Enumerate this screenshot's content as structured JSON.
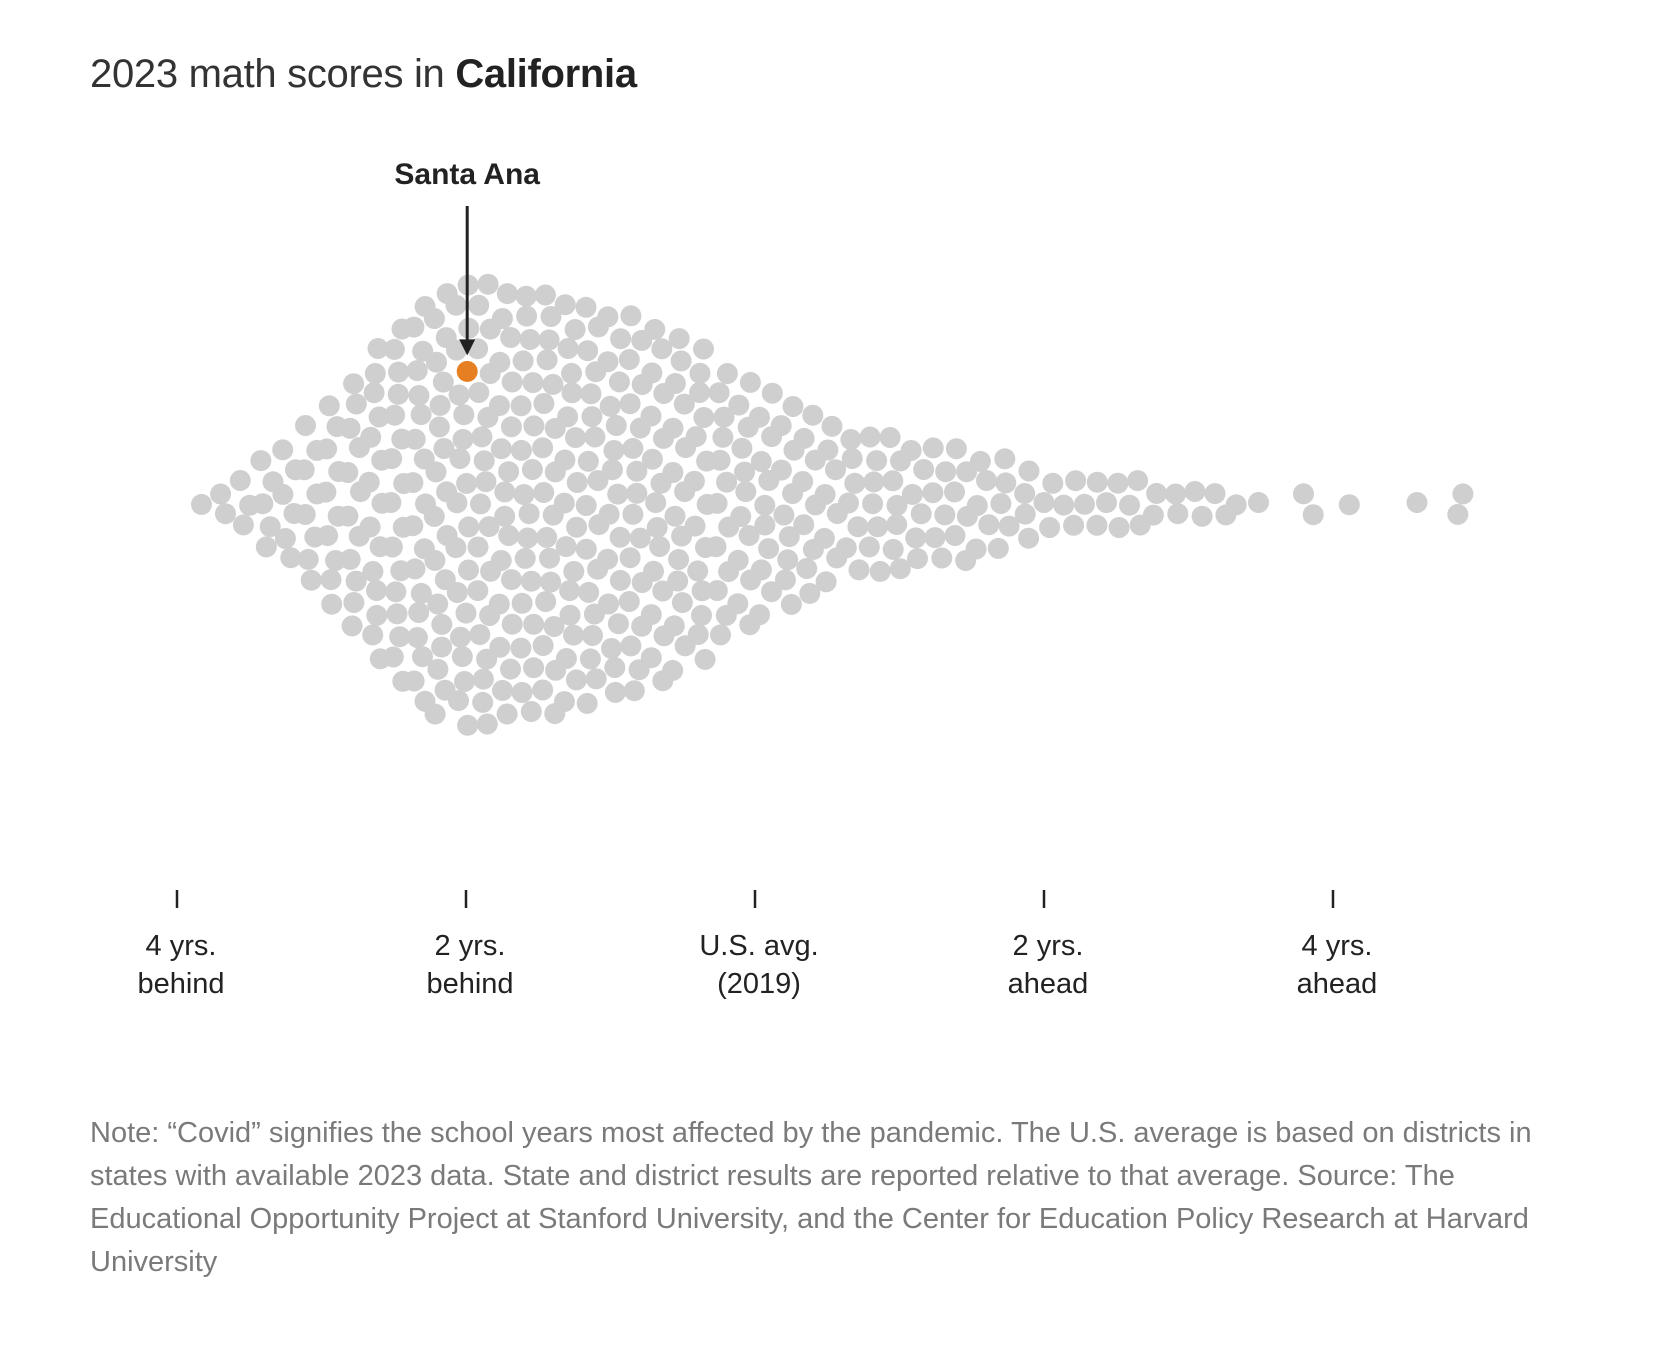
{
  "title": {
    "prefix": "2023 math scores in",
    "state": "California"
  },
  "note": "Note: “Covid” signifies the school years most affected by the pandemic. The U.S. average is based on districts in states with available 2023 data. State and district results are reported relative to that average. Source: The Educational Opportunity Project at Stanford University, and the Center for Education Policy Research at Harvard University",
  "colors": {
    "dot": "#cfcfcf",
    "highlight": "#e67e22",
    "text": "#222222",
    "note": "#7a7a7a"
  },
  "chart_data": {
    "type": "scatter",
    "subtype": "beeswarm",
    "xlabel": "",
    "ylabel": "",
    "x_unit": "grade levels relative to U.S. avg. (2019)",
    "xlim": [
      -4.3,
      5.1
    ],
    "x_ticks": [
      {
        "value": -4,
        "label": [
          "4 yrs.",
          "behind"
        ]
      },
      {
        "value": -2,
        "label": [
          "2 yrs.",
          "behind"
        ]
      },
      {
        "value": 0,
        "label": [
          "U.S. avg.",
          "(2019)"
        ]
      },
      {
        "value": 2,
        "label": [
          "2 yrs.",
          "ahead"
        ]
      },
      {
        "value": 4,
        "label": [
          "4 yrs.",
          "ahead"
        ]
      }
    ],
    "highlight": {
      "label": "Santa Ana",
      "value": -2.0
    },
    "distribution": {
      "approx_count": 470,
      "bins_width_years": 0.15,
      "bins": [
        {
          "x": -3.825,
          "count": 1
        },
        {
          "x": -3.675,
          "count": 2
        },
        {
          "x": -3.525,
          "count": 3
        },
        {
          "x": -3.375,
          "count": 5
        },
        {
          "x": -3.225,
          "count": 6
        },
        {
          "x": -3.075,
          "count": 8
        },
        {
          "x": -2.925,
          "count": 10
        },
        {
          "x": -2.775,
          "count": 12
        },
        {
          "x": -2.625,
          "count": 15
        },
        {
          "x": -2.475,
          "count": 17
        },
        {
          "x": -2.325,
          "count": 19
        },
        {
          "x": -2.175,
          "count": 20
        },
        {
          "x": -2.025,
          "count": 21
        },
        {
          "x": -1.875,
          "count": 21
        },
        {
          "x": -1.725,
          "count": 20
        },
        {
          "x": -1.575,
          "count": 20
        },
        {
          "x": -1.425,
          "count": 20
        },
        {
          "x": -1.275,
          "count": 19
        },
        {
          "x": -1.125,
          "count": 19
        },
        {
          "x": -0.975,
          "count": 18
        },
        {
          "x": -0.825,
          "count": 18
        },
        {
          "x": -0.675,
          "count": 17
        },
        {
          "x": -0.525,
          "count": 16
        },
        {
          "x": -0.375,
          "count": 15
        },
        {
          "x": -0.225,
          "count": 13
        },
        {
          "x": -0.075,
          "count": 12
        },
        {
          "x": 0.075,
          "count": 11
        },
        {
          "x": 0.225,
          "count": 10
        },
        {
          "x": 0.375,
          "count": 9
        },
        {
          "x": 0.525,
          "count": 8
        },
        {
          "x": 0.675,
          "count": 7
        },
        {
          "x": 0.825,
          "count": 7
        },
        {
          "x": 0.975,
          "count": 7
        },
        {
          "x": 1.125,
          "count": 6
        },
        {
          "x": 1.275,
          "count": 6
        },
        {
          "x": 1.425,
          "count": 6
        },
        {
          "x": 1.575,
          "count": 5
        },
        {
          "x": 1.725,
          "count": 5
        },
        {
          "x": 1.875,
          "count": 4
        },
        {
          "x": 2.025,
          "count": 3
        },
        {
          "x": 2.175,
          "count": 3
        },
        {
          "x": 2.325,
          "count": 3
        },
        {
          "x": 2.475,
          "count": 3
        },
        {
          "x": 2.625,
          "count": 3
        },
        {
          "x": 2.775,
          "count": 2
        },
        {
          "x": 2.925,
          "count": 2
        },
        {
          "x": 3.075,
          "count": 2
        },
        {
          "x": 3.225,
          "count": 2
        },
        {
          "x": 3.375,
          "count": 1
        },
        {
          "x": 3.525,
          "count": 1
        },
        {
          "x": 3.825,
          "count": 2
        },
        {
          "x": 4.125,
          "count": 1
        },
        {
          "x": 4.575,
          "count": 1
        },
        {
          "x": 4.875,
          "count": 2
        }
      ]
    }
  }
}
